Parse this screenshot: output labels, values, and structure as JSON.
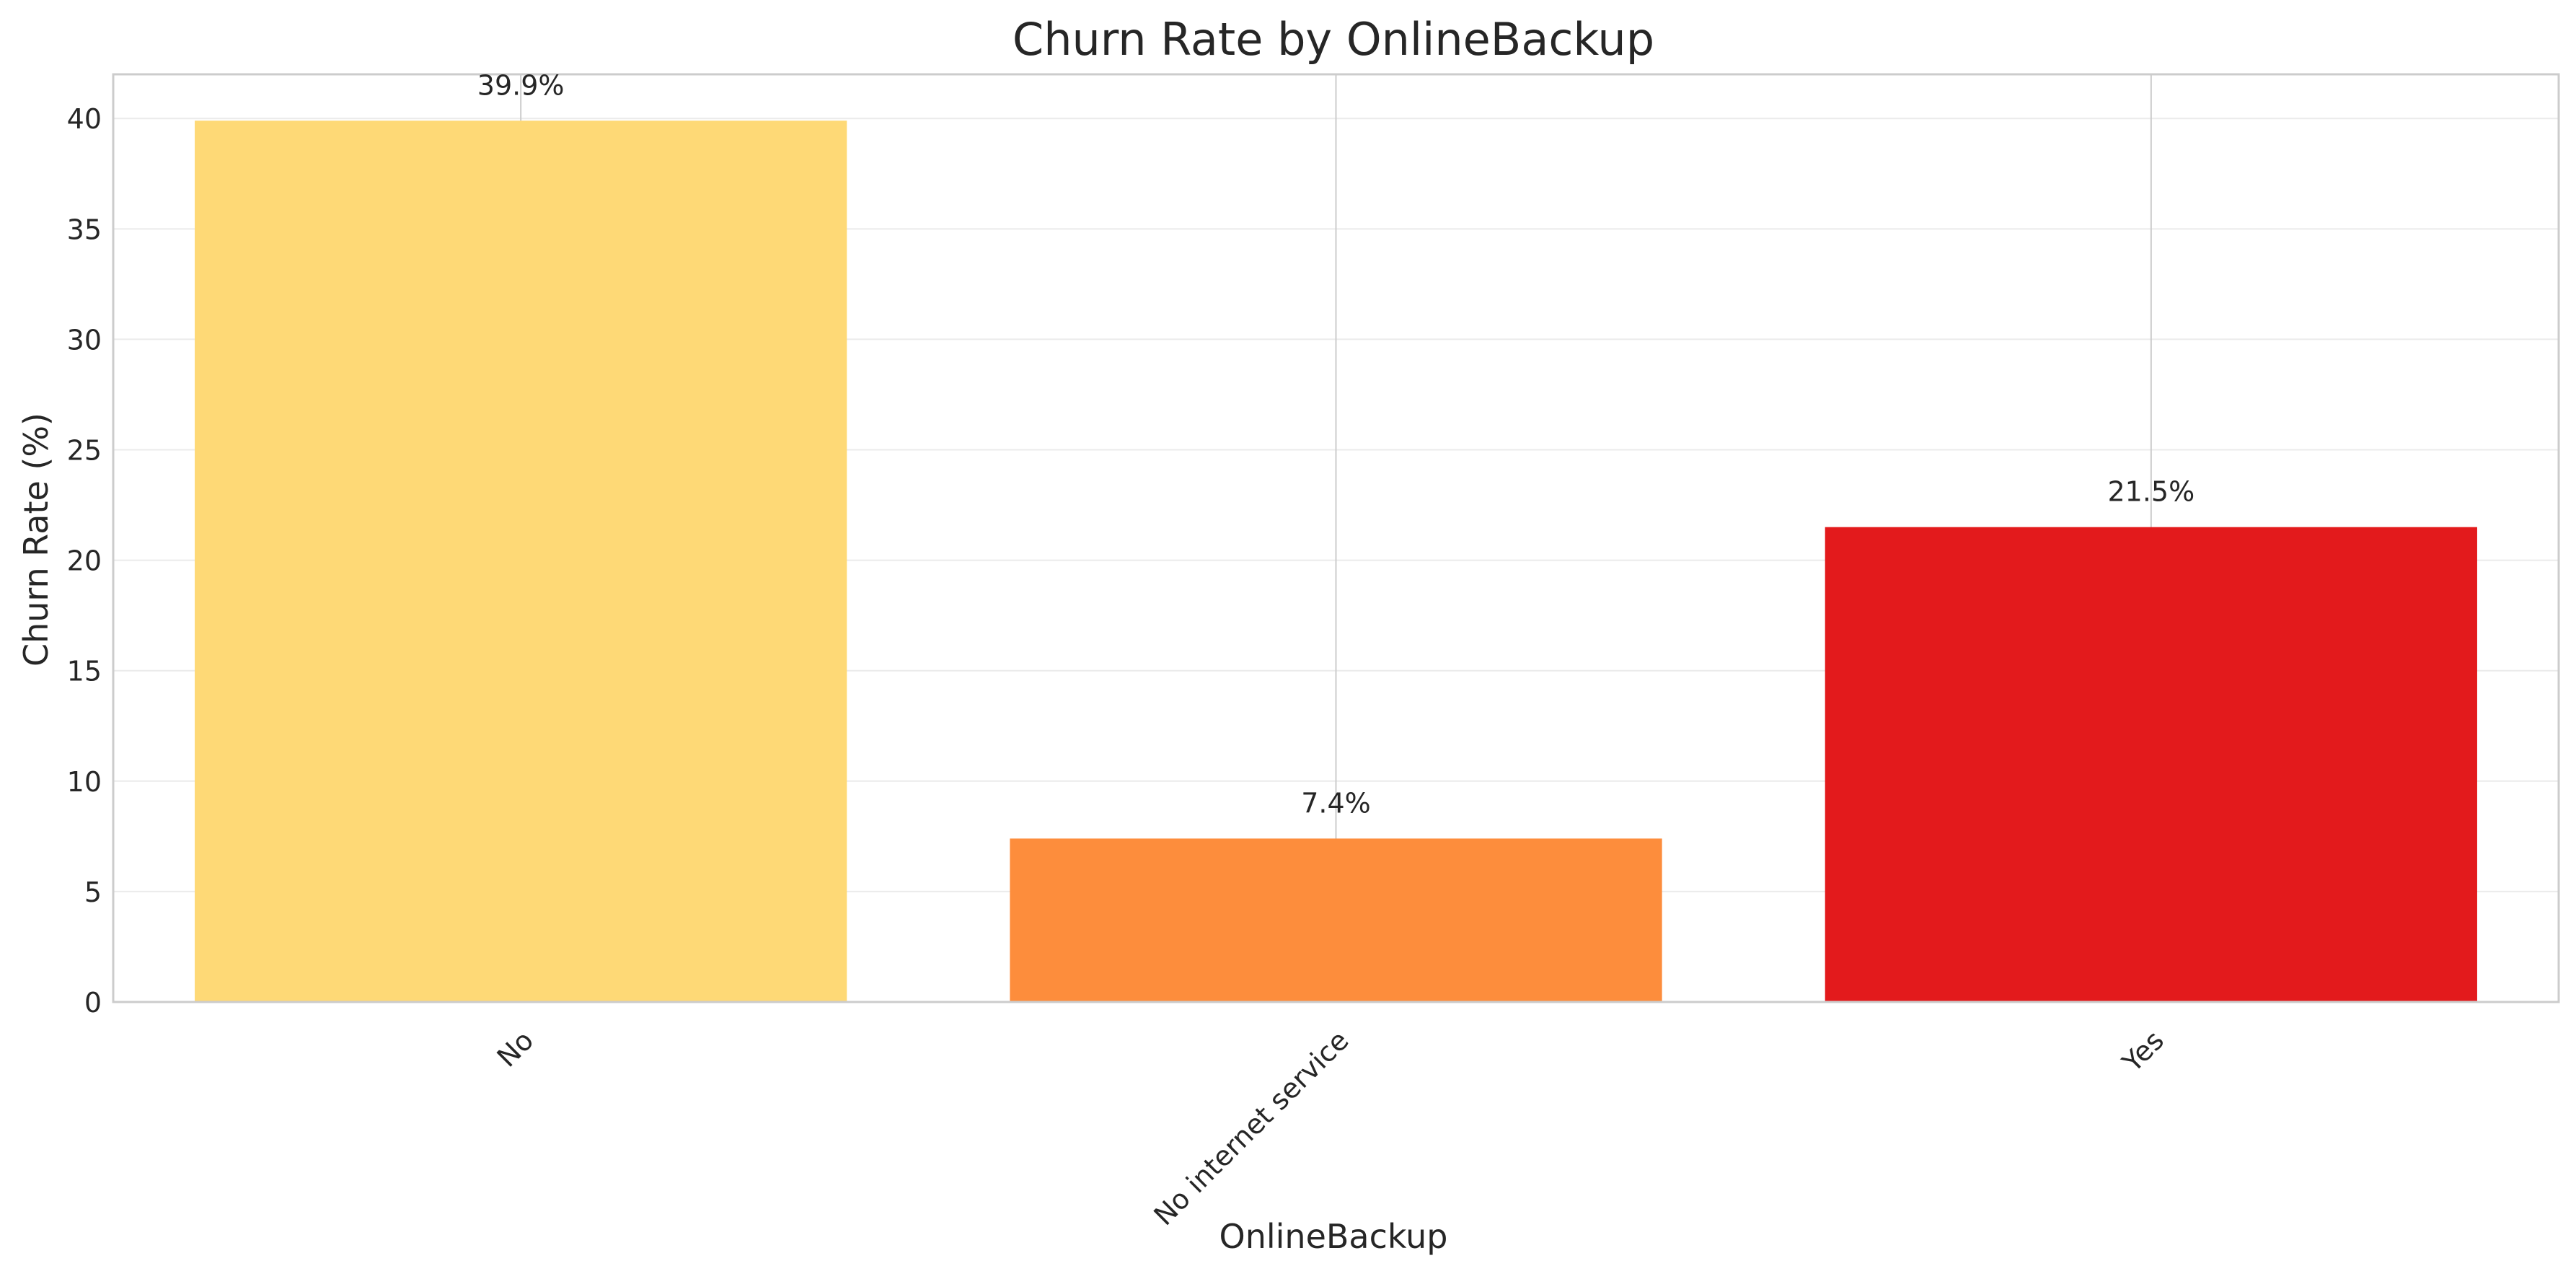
{
  "chart_data": {
    "type": "bar",
    "title": "Churn Rate by OnlineBackup",
    "xlabel": "OnlineBackup",
    "ylabel": "Churn Rate (%)",
    "categories": [
      "No",
      "No internet service",
      "Yes"
    ],
    "values": [
      39.9,
      7.4,
      21.5
    ],
    "data_labels": [
      "39.9%",
      "7.4%",
      "21.5%"
    ],
    "colors": [
      "#fed976",
      "#fd8d3c",
      "#e31a1c"
    ],
    "ylim": [
      0,
      42
    ],
    "yticks": [
      0,
      5,
      10,
      15,
      20,
      25,
      30,
      35,
      40
    ],
    "grid": true,
    "legend": "none",
    "tick_label_rotation": -45
  }
}
